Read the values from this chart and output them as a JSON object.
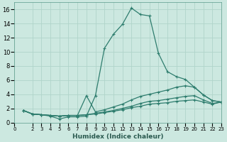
{
  "title": "",
  "xlabel": "Humidex (Indice chaleur)",
  "ylabel": "",
  "bg_color": "#cce8e0",
  "grid_color": "#b0d4ca",
  "line_color": "#2e7d6e",
  "xlim": [
    0,
    23
  ],
  "ylim": [
    0,
    17
  ],
  "xticks": [
    0,
    2,
    3,
    4,
    5,
    6,
    7,
    8,
    9,
    10,
    11,
    12,
    13,
    14,
    15,
    16,
    17,
    18,
    19,
    20,
    21,
    22,
    23
  ],
  "yticks": [
    0,
    2,
    4,
    6,
    8,
    10,
    12,
    14,
    16
  ],
  "line1_x": [
    1,
    2,
    3,
    4,
    5,
    6,
    7,
    8,
    9,
    10,
    11,
    12,
    13,
    14,
    15,
    16,
    17,
    18,
    19,
    20,
    21,
    22,
    23
  ],
  "line1_y": [
    1.7,
    1.2,
    1.1,
    0.9,
    0.5,
    0.8,
    0.8,
    0.9,
    3.8,
    10.5,
    12.5,
    13.9,
    16.2,
    15.3,
    15.1,
    9.8,
    7.2,
    6.5,
    6.1,
    5.0,
    3.9,
    3.1,
    2.9
  ],
  "line2_x": [
    1,
    2,
    3,
    4,
    5,
    6,
    7,
    8,
    9,
    10,
    11,
    12,
    13,
    14,
    15,
    16,
    17,
    18,
    19,
    20,
    21,
    22,
    23
  ],
  "line2_y": [
    1.7,
    1.2,
    1.1,
    1.0,
    0.9,
    1.0,
    1.0,
    3.8,
    1.5,
    1.8,
    2.2,
    2.6,
    3.2,
    3.7,
    4.0,
    4.3,
    4.6,
    5.0,
    5.2,
    5.0,
    3.9,
    3.1,
    2.9
  ],
  "line3_x": [
    1,
    2,
    3,
    4,
    5,
    6,
    7,
    8,
    9,
    10,
    11,
    12,
    13,
    14,
    15,
    16,
    17,
    18,
    19,
    20,
    21,
    22,
    23
  ],
  "line3_y": [
    1.7,
    1.2,
    1.1,
    1.0,
    0.9,
    1.0,
    1.0,
    1.1,
    1.3,
    1.5,
    1.7,
    2.0,
    2.3,
    2.7,
    3.0,
    3.1,
    3.3,
    3.5,
    3.7,
    3.8,
    3.2,
    2.7,
    2.9
  ],
  "line4_x": [
    1,
    2,
    3,
    4,
    5,
    6,
    7,
    8,
    9,
    10,
    11,
    12,
    13,
    14,
    15,
    16,
    17,
    18,
    19,
    20,
    21,
    22,
    23
  ],
  "line4_y": [
    1.7,
    1.2,
    1.1,
    1.0,
    0.9,
    1.0,
    1.0,
    1.1,
    1.2,
    1.4,
    1.6,
    1.8,
    2.1,
    2.3,
    2.6,
    2.7,
    2.8,
    3.0,
    3.1,
    3.2,
    2.9,
    2.6,
    2.9
  ]
}
